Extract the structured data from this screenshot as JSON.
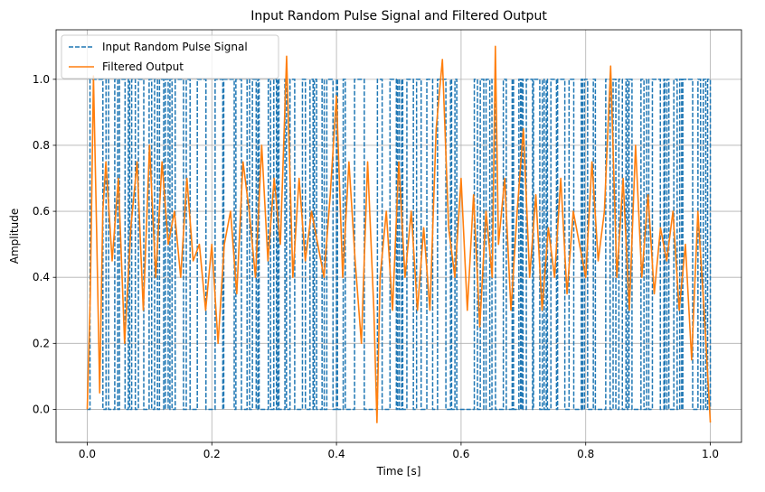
{
  "chart_data": {
    "type": "line",
    "title": "Input Random Pulse Signal and Filtered Output",
    "xlabel": "Time [s]",
    "ylabel": "Amplitude",
    "xlim": [
      -0.05,
      1.05
    ],
    "ylim": [
      -0.1,
      1.15
    ],
    "xticks": [
      "0.0",
      "0.2",
      "0.4",
      "0.6",
      "0.8",
      "1.0"
    ],
    "yticks": [
      "0.0",
      "0.2",
      "0.4",
      "0.6",
      "0.8",
      "1.0"
    ],
    "grid": true,
    "legend": "top-left",
    "series": [
      {
        "name": "Input Random Pulse Signal",
        "color": "#1f77b4",
        "style": "dashed",
        "levels": [
          0,
          1
        ],
        "x_range": [
          0.0,
          1.0
        ],
        "description_values": "random binary pulses switching between 0 and 1"
      },
      {
        "name": "Filtered Output",
        "color": "#ff7f0e",
        "style": "solid",
        "x": [
          0.0,
          0.005,
          0.01,
          0.015,
          0.02,
          0.025,
          0.03,
          0.04,
          0.05,
          0.06,
          0.07,
          0.08,
          0.09,
          0.1,
          0.11,
          0.12,
          0.13,
          0.14,
          0.15,
          0.16,
          0.17,
          0.18,
          0.19,
          0.2,
          0.21,
          0.22,
          0.23,
          0.24,
          0.25,
          0.26,
          0.27,
          0.28,
          0.29,
          0.3,
          0.31,
          0.32,
          0.33,
          0.34,
          0.35,
          0.36,
          0.37,
          0.38,
          0.39,
          0.4,
          0.41,
          0.42,
          0.43,
          0.44,
          0.45,
          0.46,
          0.465,
          0.47,
          0.48,
          0.49,
          0.5,
          0.51,
          0.52,
          0.53,
          0.54,
          0.55,
          0.56,
          0.57,
          0.58,
          0.59,
          0.6,
          0.61,
          0.62,
          0.63,
          0.64,
          0.65,
          0.655,
          0.66,
          0.67,
          0.68,
          0.69,
          0.7,
          0.71,
          0.72,
          0.73,
          0.74,
          0.75,
          0.76,
          0.77,
          0.78,
          0.79,
          0.8,
          0.81,
          0.82,
          0.83,
          0.84,
          0.85,
          0.86,
          0.87,
          0.88,
          0.89,
          0.9,
          0.91,
          0.92,
          0.93,
          0.94,
          0.95,
          0.96,
          0.97,
          0.98,
          0.99,
          1.0
        ],
        "y": [
          0.0,
          0.35,
          1.01,
          0.55,
          0.05,
          0.6,
          0.75,
          0.45,
          0.7,
          0.2,
          0.55,
          0.75,
          0.3,
          0.8,
          0.4,
          0.75,
          0.5,
          0.6,
          0.4,
          0.7,
          0.45,
          0.5,
          0.3,
          0.5,
          0.2,
          0.5,
          0.6,
          0.35,
          0.75,
          0.6,
          0.4,
          0.8,
          0.45,
          0.7,
          0.5,
          1.07,
          0.4,
          0.7,
          0.45,
          0.6,
          0.5,
          0.4,
          0.65,
          0.95,
          0.4,
          0.75,
          0.45,
          0.2,
          0.75,
          0.3,
          -0.04,
          0.4,
          0.6,
          0.3,
          0.75,
          0.4,
          0.6,
          0.3,
          0.55,
          0.3,
          0.85,
          1.06,
          0.55,
          0.4,
          0.7,
          0.3,
          0.65,
          0.25,
          0.6,
          0.4,
          1.1,
          0.5,
          0.7,
          0.3,
          0.6,
          0.85,
          0.4,
          0.65,
          0.3,
          0.55,
          0.4,
          0.7,
          0.35,
          0.6,
          0.5,
          0.4,
          0.75,
          0.45,
          0.6,
          1.04,
          0.4,
          0.7,
          0.3,
          0.8,
          0.4,
          0.65,
          0.35,
          0.55,
          0.45,
          0.6,
          0.3,
          0.5,
          0.15,
          0.6,
          0.3,
          -0.04
        ]
      }
    ]
  }
}
